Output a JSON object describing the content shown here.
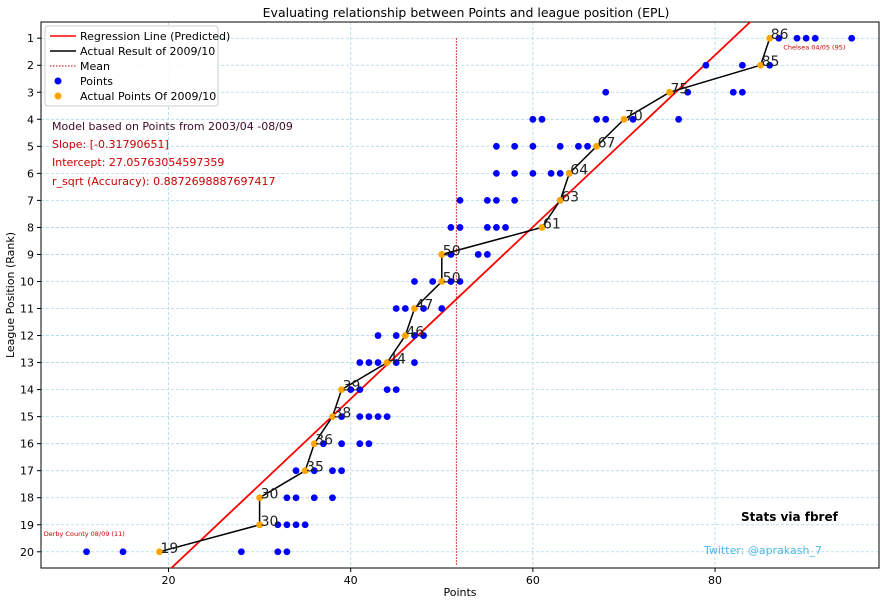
{
  "colors": {
    "regression": "#ff0000",
    "actual_line": "#000000",
    "mean": "#cc0000",
    "points": "#0000ff",
    "actual_points": "#ffa500",
    "grid": "#add8e6",
    "info_text": "#cc0000",
    "model_text": "#3c0a28",
    "twitter_text": "#4db8e6"
  },
  "chart_data": {
    "type": "scatter",
    "title": "Evaluating relationship between Points and league position (EPL)",
    "xlabel": "Points",
    "ylabel": "League Position (Rank)",
    "xlim": [
      6,
      98
    ],
    "ylim": [
      20.6,
      0.4
    ],
    "x_ticks": [
      20,
      40,
      60,
      80
    ],
    "y_ticks": [
      1,
      2,
      3,
      4,
      5,
      6,
      7,
      8,
      9,
      10,
      11,
      12,
      13,
      14,
      15,
      16,
      17,
      18,
      19,
      20
    ],
    "grid": true,
    "legend_position": "top-left",
    "legend": {
      "regression": "Regression Line (Predicted)",
      "actual": "Actual Result of 2009/10",
      "mean": "Mean",
      "points": "Points",
      "actual_points": "Actual Points Of 2009/10"
    },
    "regression": {
      "slope": -0.3179,
      "intercept": 27.0576,
      "x_range": [
        19.5,
        87.5
      ]
    },
    "mean_points": 51.6,
    "mean_y_range": [
      1,
      20.5
    ],
    "points_series": {
      "name": "Points",
      "points": [
        [
          95,
          1
        ],
        [
          91,
          1
        ],
        [
          90,
          1
        ],
        [
          89,
          1
        ],
        [
          87,
          1
        ],
        [
          86,
          2
        ],
        [
          83,
          2
        ],
        [
          79,
          2
        ],
        [
          83,
          3
        ],
        [
          82,
          3
        ],
        [
          77,
          3
        ],
        [
          68,
          3
        ],
        [
          76,
          4
        ],
        [
          71,
          4
        ],
        [
          68,
          4
        ],
        [
          67,
          4
        ],
        [
          61,
          4
        ],
        [
          60,
          4
        ],
        [
          66,
          5
        ],
        [
          65,
          5
        ],
        [
          63,
          5
        ],
        [
          60,
          5
        ],
        [
          58,
          5
        ],
        [
          56,
          5
        ],
        [
          64,
          6
        ],
        [
          63,
          6
        ],
        [
          62,
          6
        ],
        [
          60,
          6
        ],
        [
          58,
          6
        ],
        [
          56,
          6
        ],
        [
          63,
          7
        ],
        [
          58,
          7
        ],
        [
          56,
          7
        ],
        [
          55,
          7
        ],
        [
          52,
          7
        ],
        [
          57,
          8
        ],
        [
          56,
          8
        ],
        [
          55,
          8
        ],
        [
          52,
          8
        ],
        [
          51,
          8
        ],
        [
          55,
          9
        ],
        [
          54,
          9
        ],
        [
          51,
          9
        ],
        [
          52,
          10
        ],
        [
          51,
          10
        ],
        [
          49,
          10
        ],
        [
          47,
          10
        ],
        [
          50,
          11
        ],
        [
          48,
          11
        ],
        [
          46,
          11
        ],
        [
          45,
          11
        ],
        [
          48,
          12
        ],
        [
          47,
          12
        ],
        [
          45,
          12
        ],
        [
          43,
          12
        ],
        [
          47,
          13
        ],
        [
          45,
          13
        ],
        [
          43,
          13
        ],
        [
          42,
          13
        ],
        [
          41,
          13
        ],
        [
          45,
          14
        ],
        [
          44,
          14
        ],
        [
          41,
          14
        ],
        [
          40,
          14
        ],
        [
          44,
          15
        ],
        [
          43,
          15
        ],
        [
          42,
          15
        ],
        [
          41,
          15
        ],
        [
          39,
          15
        ],
        [
          42,
          16
        ],
        [
          41,
          16
        ],
        [
          39,
          16
        ],
        [
          37,
          16
        ],
        [
          39,
          17
        ],
        [
          38,
          17
        ],
        [
          36,
          17
        ],
        [
          34,
          17
        ],
        [
          38,
          18
        ],
        [
          36,
          18
        ],
        [
          34,
          18
        ],
        [
          33,
          18
        ],
        [
          35,
          19
        ],
        [
          34,
          19
        ],
        [
          33,
          19
        ],
        [
          32,
          19
        ],
        [
          33,
          20
        ],
        [
          32,
          20
        ],
        [
          28,
          20
        ],
        [
          15,
          20
        ],
        [
          11,
          20
        ]
      ]
    },
    "actual_2009_10": {
      "name": "Actual Points Of 2009/10",
      "points": [
        [
          86,
          1
        ],
        [
          85,
          2
        ],
        [
          75,
          3
        ],
        [
          70,
          4
        ],
        [
          67,
          5
        ],
        [
          64,
          6
        ],
        [
          63,
          7
        ],
        [
          61,
          8
        ],
        [
          50,
          9
        ],
        [
          50,
          10
        ],
        [
          47,
          11
        ],
        [
          46,
          12
        ],
        [
          44,
          13
        ],
        [
          39,
          14
        ],
        [
          38,
          15
        ],
        [
          36,
          16
        ],
        [
          35,
          17
        ],
        [
          30,
          18
        ],
        [
          30,
          19
        ],
        [
          19,
          20
        ]
      ],
      "labels": [
        "86",
        "85",
        "75",
        "70",
        "67",
        "64",
        "63",
        "61",
        "50",
        "50",
        "47",
        "46",
        "44",
        "39",
        "38",
        "36",
        "35",
        "30",
        "30",
        "19"
      ]
    },
    "annotations": {
      "chelsea": {
        "text": "Chelsea 04/05 (95)",
        "x": 87.5,
        "y": 1.42
      },
      "derby": {
        "text": "Derby County 08/09 (11)",
        "x": 6.3,
        "y": 19.42
      }
    }
  },
  "info": {
    "model": "Model based on Points from 2003/04 -08/09",
    "slope": "Slope: [-0.31790651]",
    "intercept": "Intercept: 27.05763054597359",
    "r_sqrt": "r_sqrt (Accuracy): 0.8872698887697417",
    "stats_source": "Stats via fbref",
    "twitter": "Twitter: @aprakash_7"
  }
}
